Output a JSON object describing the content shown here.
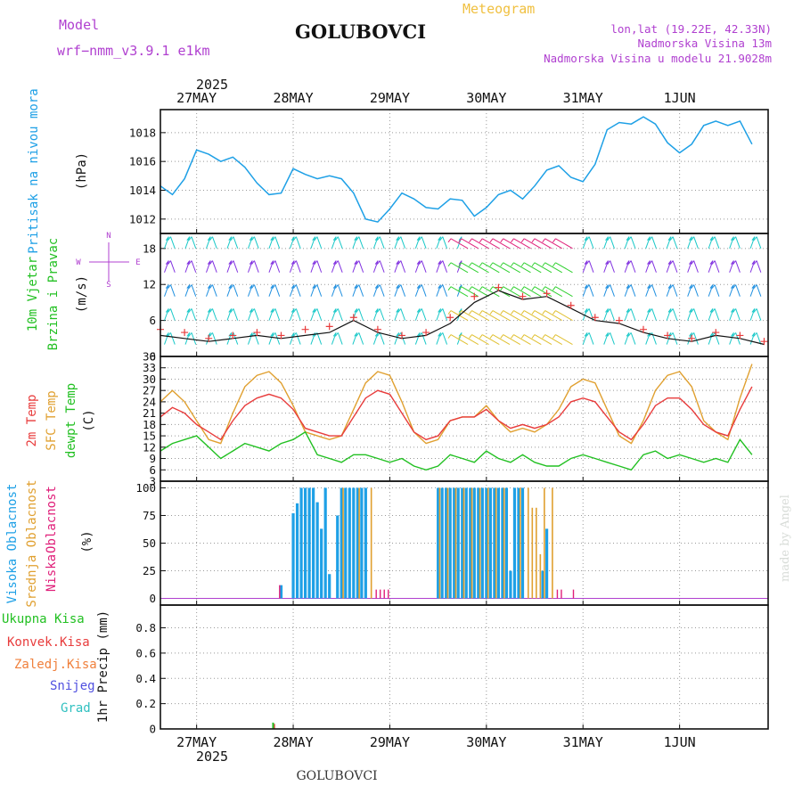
{
  "header": {
    "model_label": "Model",
    "model_name": "wrf−nmm_v3.9.1  e1km",
    "station": "GOLUBOVCI",
    "product": "Meteogram",
    "coords": "lon,lat (19.22E, 42.33N)",
    "elevation": "Nadmorska Visina 13m",
    "model_elevation": "Nadmorska Visina u modelu 21.9028m",
    "credit": "made by Angel",
    "footer_station": "GOLUBOVCI"
  },
  "colors": {
    "pressure": "#1ea0e6",
    "temp2m": "#e83c3c",
    "sfc": "#e0a030",
    "dewpt": "#22c022",
    "high_cloud": "#1ea0e6",
    "mid_cloud": "#e0a030",
    "low_cloud": "#e0207a",
    "wind_label": "#22c022",
    "compass": "#b040d0",
    "header_purple": "#b040d0",
    "meteogram_title": "#f0c040"
  },
  "chart_data": [
    {
      "type": "line",
      "name": "pressure",
      "ylabel_1": "Pritisak na nivou mora",
      "ylabel_2": "(hPa)",
      "y_ticks": [
        1012,
        1014,
        1016,
        1018
      ],
      "ylim": [
        1011,
        1019.6
      ],
      "grid": true,
      "x_hours": [
        0,
        3,
        6,
        9,
        12,
        15,
        18,
        21,
        24,
        27,
        30,
        33,
        36,
        39,
        42,
        45,
        48,
        51,
        54,
        57,
        60,
        63,
        66,
        69,
        72,
        75,
        78,
        81,
        84,
        87,
        90,
        93,
        96,
        99,
        102,
        105,
        108,
        111,
        114,
        117,
        120,
        123,
        126,
        129,
        132,
        135,
        138,
        141,
        144,
        147
      ],
      "values": [
        1014.3,
        1013.7,
        1014.8,
        1016.8,
        1016.5,
        1016.0,
        1016.3,
        1015.6,
        1014.5,
        1013.7,
        1013.8,
        1015.5,
        1015.1,
        1014.8,
        1015.0,
        1014.8,
        1013.8,
        1012.0,
        1011.8,
        1012.7,
        1013.8,
        1013.4,
        1012.8,
        1012.7,
        1013.4,
        1013.3,
        1012.2,
        1012.8,
        1013.7,
        1014.0,
        1013.4,
        1014.3,
        1015.4,
        1015.7,
        1014.9,
        1014.6,
        1015.8,
        1018.2,
        1018.7,
        1018.6,
        1019.1,
        1018.6,
        1017.3,
        1016.6,
        1017.2,
        1018.5,
        1018.8,
        1018.5,
        1018.8,
        1017.2
      ]
    },
    {
      "type": "line",
      "name": "wind",
      "ylabel_1": "10m Vjetar",
      "ylabel_2": "Brzina i Pravac",
      "ylabel_3": "(m/s)",
      "compass": {
        "north": "N",
        "south": "S",
        "west": "W",
        "east": "E"
      },
      "y_ticks": [
        0,
        6,
        12,
        18
      ],
      "ylim": [
        0,
        20.5
      ],
      "grid": true,
      "x_hours": [
        0,
        6,
        12,
        18,
        24,
        30,
        36,
        42,
        48,
        54,
        60,
        66,
        72,
        78,
        84,
        90,
        96,
        102,
        108,
        114,
        120,
        126,
        132,
        138,
        144,
        150
      ],
      "speed": [
        3.5,
        3.0,
        2.5,
        3.0,
        3.5,
        3.0,
        3.5,
        4.0,
        6.0,
        4.0,
        3.0,
        3.5,
        5.5,
        9.0,
        11.0,
        9.5,
        10.0,
        8.0,
        6.0,
        5.5,
        4.0,
        3.0,
        2.5,
        3.5,
        3.0,
        2.0
      ],
      "gust": [
        4.5,
        4.0,
        3.0,
        3.5,
        4.0,
        3.5,
        4.5,
        5.0,
        6.5,
        4.5,
        3.5,
        4.0,
        6.5,
        10.0,
        11.5,
        10.0,
        10.5,
        8.5,
        6.5,
        6.0,
        4.5,
        3.5,
        3.0,
        4.0,
        3.5,
        2.5
      ]
    },
    {
      "type": "line",
      "name": "temperature",
      "ylabel_1": "2m Temp",
      "ylabel_2": "SFC Temp",
      "ylabel_3": "dewpt Temp",
      "ylabel_4": "(C)",
      "y_ticks": [
        3,
        6,
        9,
        12,
        15,
        18,
        21,
        24,
        27,
        30,
        33,
        36
      ],
      "ylim": [
        3,
        36
      ],
      "grid": true,
      "x_hours": [
        0,
        3,
        6,
        9,
        12,
        15,
        18,
        21,
        24,
        27,
        30,
        33,
        36,
        39,
        42,
        45,
        48,
        51,
        54,
        57,
        60,
        63,
        66,
        69,
        72,
        75,
        78,
        81,
        84,
        87,
        90,
        93,
        96,
        99,
        102,
        105,
        108,
        111,
        114,
        117,
        120,
        123,
        126,
        129,
        132,
        135,
        138,
        141,
        144,
        147
      ],
      "temp2m": [
        20,
        22.5,
        21,
        18,
        16,
        14,
        19,
        23,
        25,
        26,
        25,
        22,
        17,
        16,
        15,
        15,
        20,
        25,
        27,
        26,
        21,
        16,
        14,
        15,
        19,
        20,
        20,
        22,
        19,
        17,
        18,
        17,
        18,
        20,
        24,
        25,
        24,
        20,
        16,
        14,
        18,
        23,
        25,
        25,
        22,
        18,
        16,
        15,
        22,
        28
      ],
      "sfc": [
        24,
        27,
        24,
        19,
        14,
        13,
        21,
        28,
        31,
        32,
        29,
        23,
        16,
        15,
        14,
        15,
        22,
        29,
        32,
        31,
        24,
        16,
        13,
        14,
        19,
        20,
        20,
        23,
        19,
        16,
        17,
        16,
        18,
        22,
        28,
        30,
        29,
        22,
        15,
        13,
        19,
        27,
        31,
        32,
        28,
        19,
        16,
        14,
        25,
        34
      ],
      "dewpt": [
        11,
        13,
        14,
        15,
        12,
        9,
        11,
        13,
        12,
        11,
        13,
        14,
        16,
        10,
        9,
        8,
        10,
        10,
        9,
        8,
        9,
        7,
        6,
        7,
        10,
        9,
        8,
        11,
        9,
        8,
        10,
        8,
        7,
        7,
        9,
        10,
        9,
        8,
        7,
        6,
        10,
        11,
        9,
        10,
        9,
        8,
        9,
        8,
        14,
        10
      ]
    },
    {
      "type": "bar",
      "name": "cloud",
      "ylabel_1": "Visoka Oblacnost",
      "ylabel_2": "Srednja Oblacnost",
      "ylabel_3": "Niska",
      "ylabel_3b": "Oblacnost",
      "ylabel_4": "(%)",
      "y_ticks": [
        0,
        25,
        50,
        75,
        100
      ],
      "ylim": [
        -6,
        106
      ],
      "grid": true,
      "high_bars": [
        [
          30,
          12
        ],
        [
          33,
          77
        ],
        [
          34,
          86
        ],
        [
          35,
          100
        ],
        [
          36,
          100
        ],
        [
          37,
          100
        ],
        [
          38,
          100
        ],
        [
          39,
          87
        ],
        [
          40,
          63
        ],
        [
          41,
          100
        ],
        [
          42,
          22
        ],
        [
          44,
          75
        ],
        [
          45,
          100
        ],
        [
          46,
          100
        ],
        [
          47,
          100
        ],
        [
          48,
          100
        ],
        [
          49,
          100
        ],
        [
          50,
          100
        ],
        [
          51,
          100
        ],
        [
          69,
          100
        ],
        [
          70,
          100
        ],
        [
          71,
          100
        ],
        [
          72,
          100
        ],
        [
          73,
          100
        ],
        [
          74,
          100
        ],
        [
          75,
          100
        ],
        [
          76,
          100
        ],
        [
          77,
          100
        ],
        [
          78,
          100
        ],
        [
          79,
          100
        ],
        [
          80,
          100
        ],
        [
          81,
          100
        ],
        [
          82,
          100
        ],
        [
          83,
          100
        ],
        [
          84,
          100
        ],
        [
          85,
          100
        ],
        [
          86,
          100
        ],
        [
          87,
          25
        ],
        [
          88,
          100
        ],
        [
          89,
          100
        ],
        [
          90,
          100
        ],
        [
          95,
          25
        ],
        [
          96,
          63
        ]
      ],
      "mid_bars": [
        [
          45,
          100
        ],
        [
          49,
          100
        ],
        [
          52,
          100
        ],
        [
          69,
          100
        ],
        [
          71,
          100
        ],
        [
          73,
          100
        ],
        [
          75,
          100
        ],
        [
          77,
          100
        ],
        [
          79,
          100
        ],
        [
          81,
          100
        ],
        [
          83,
          100
        ],
        [
          85,
          100
        ],
        [
          89,
          100
        ],
        [
          91,
          100
        ],
        [
          92,
          82
        ],
        [
          93,
          82
        ],
        [
          94,
          40
        ],
        [
          95,
          100
        ],
        [
          97,
          100
        ]
      ],
      "low_bars": [
        [
          30,
          12
        ],
        [
          54,
          8
        ],
        [
          55,
          8
        ],
        [
          56,
          8
        ],
        [
          57,
          8
        ],
        [
          99,
          8
        ],
        [
          100,
          8
        ],
        [
          103,
          8
        ]
      ]
    },
    {
      "type": "bar",
      "name": "precip",
      "ylabel_1": "1hr Precip (mm)",
      "legend": [
        {
          "label": "Ukupna  Kisa",
          "color": "#22c022"
        },
        {
          "label": "Konvek.Kisa",
          "color": "#e83c3c"
        },
        {
          "label": "Zaledj.Kisa",
          "color": "#f0803c"
        },
        {
          "label": "Snijeg",
          "color": "#5050e0"
        },
        {
          "label": "Grad",
          "color": "#30c0c0"
        }
      ],
      "y_ticks": [
        0,
        0.2,
        0.4,
        0.6,
        0.8
      ],
      "ylim": [
        0,
        0.98
      ],
      "grid": true,
      "bars": [
        [
          28,
          0.05
        ]
      ]
    }
  ],
  "time_axis": {
    "year": "2025",
    "day_labels": [
      "27MAY",
      "28MAY",
      "29MAY",
      "30MAY",
      "31MAY",
      "1JUN"
    ],
    "first_label_hour": 9,
    "total_hours": 151
  }
}
